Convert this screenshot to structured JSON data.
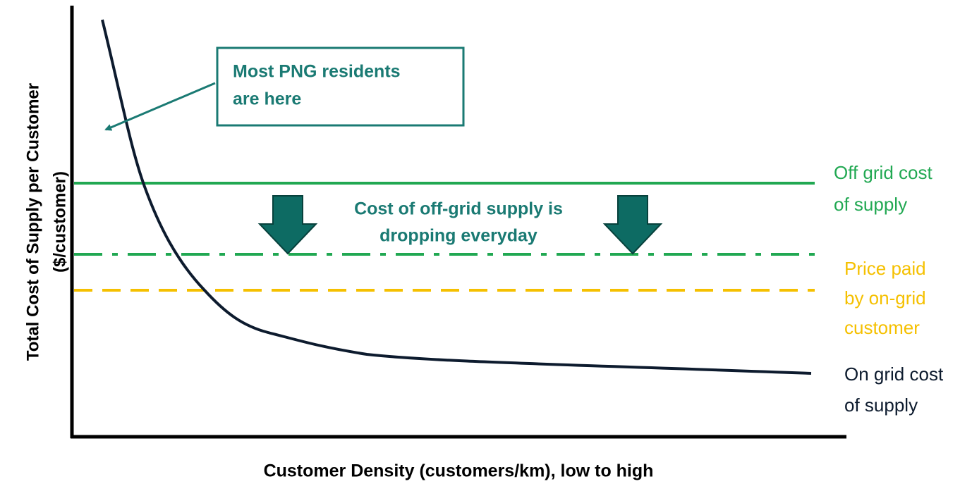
{
  "y_axis_label": [
    "Total Cost of Supply per Customer",
    "($/customer)"
  ],
  "x_axis_label": "Customer Density (customers/km), low to high",
  "callout": [
    "Most PNG residents",
    "are here"
  ],
  "trend_note": [
    "Cost of off-grid supply is",
    "dropping everyday"
  ],
  "series_labels": {
    "off_grid": [
      "Off grid cost",
      "of supply"
    ],
    "on_grid_price": [
      "Price paid",
      "by on-grid",
      "customer"
    ],
    "on_grid_cost": [
      "On grid cost",
      "of supply"
    ]
  }
}
